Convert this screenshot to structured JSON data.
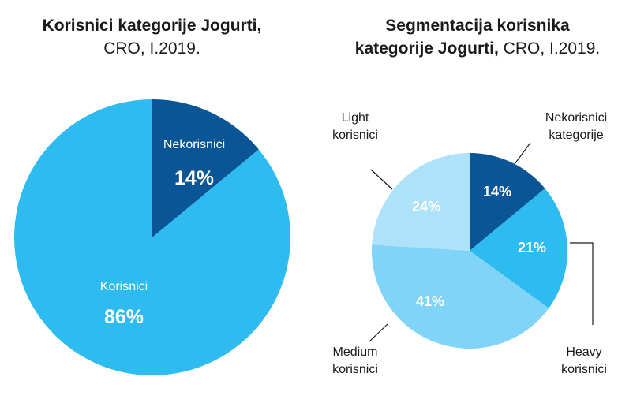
{
  "charts": [
    {
      "title_bold": "Korisnici kategorije Jogurti,",
      "title_rest": "CRO, I.2019."
    },
    {
      "title_bold_1": "Segmentacija korisnika",
      "title_bold_2": "kategorije Jogurti,",
      "title_rest": "CRO, I.2019."
    }
  ],
  "chart_data": [
    {
      "type": "pie",
      "title": "Korisnici kategorije Jogurti, CRO, I.2019.",
      "labels": [
        "Nekorisnici",
        "Korisnici"
      ],
      "values": [
        14,
        86
      ],
      "value_labels": [
        "14%",
        "86%"
      ],
      "colors": [
        "#0a5596",
        "#2ebcf0"
      ],
      "start": "12 o'clock, clockwise"
    },
    {
      "type": "pie",
      "title": "Segmentacija korisnika kategorije Jogurti, CRO, I.2019.",
      "labels": [
        "Nekorisnici kategorije",
        "Heavy korisnici",
        "Medium korisnici",
        "Light korisnici"
      ],
      "values": [
        14,
        21,
        41,
        24
      ],
      "value_labels": [
        "14%",
        "21%",
        "41%",
        "24%"
      ],
      "colors": [
        "#0a5596",
        "#2ebcf0",
        "#7fd4f7",
        "#aee2f9"
      ],
      "start": "12 o'clock, clockwise"
    }
  ],
  "callouts": {
    "nekorisnici": [
      "Nekorisnici",
      "kategorije"
    ],
    "heavy": [
      "Heavy",
      "korisnici"
    ],
    "medium": [
      "Medium",
      "korisnici"
    ],
    "light": [
      "Light",
      "korisnici"
    ]
  }
}
